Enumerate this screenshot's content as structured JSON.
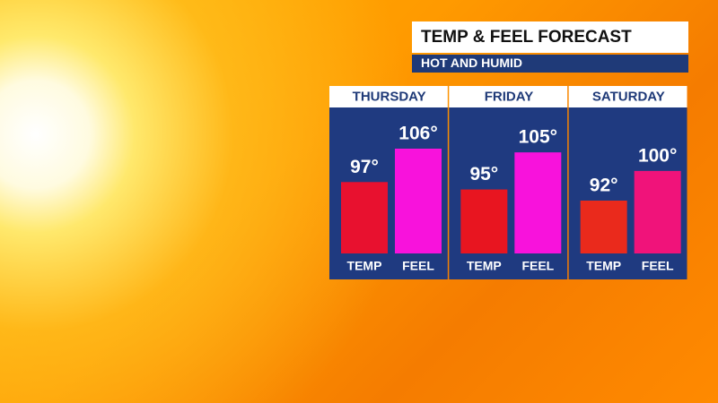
{
  "chart_data": {
    "type": "bar",
    "title": "TEMP & FEEL FORECAST",
    "subtitle": "HOT AND HUMID",
    "categories": [
      "THURSDAY",
      "FRIDAY",
      "SATURDAY"
    ],
    "series": [
      {
        "name": "TEMP",
        "colors": [
          "#e8112f",
          "#e81520",
          "#ea2a1c"
        ],
        "values": [
          97,
          95,
          92
        ],
        "value_labels": [
          "97°",
          "95°",
          "92°"
        ]
      },
      {
        "name": "FEEL",
        "colors": [
          "#f812dc",
          "#f812dc",
          "#f0137a"
        ],
        "values": [
          106,
          105,
          100
        ],
        "value_labels": [
          "106°",
          "105°",
          "100°"
        ]
      }
    ]
  }
}
